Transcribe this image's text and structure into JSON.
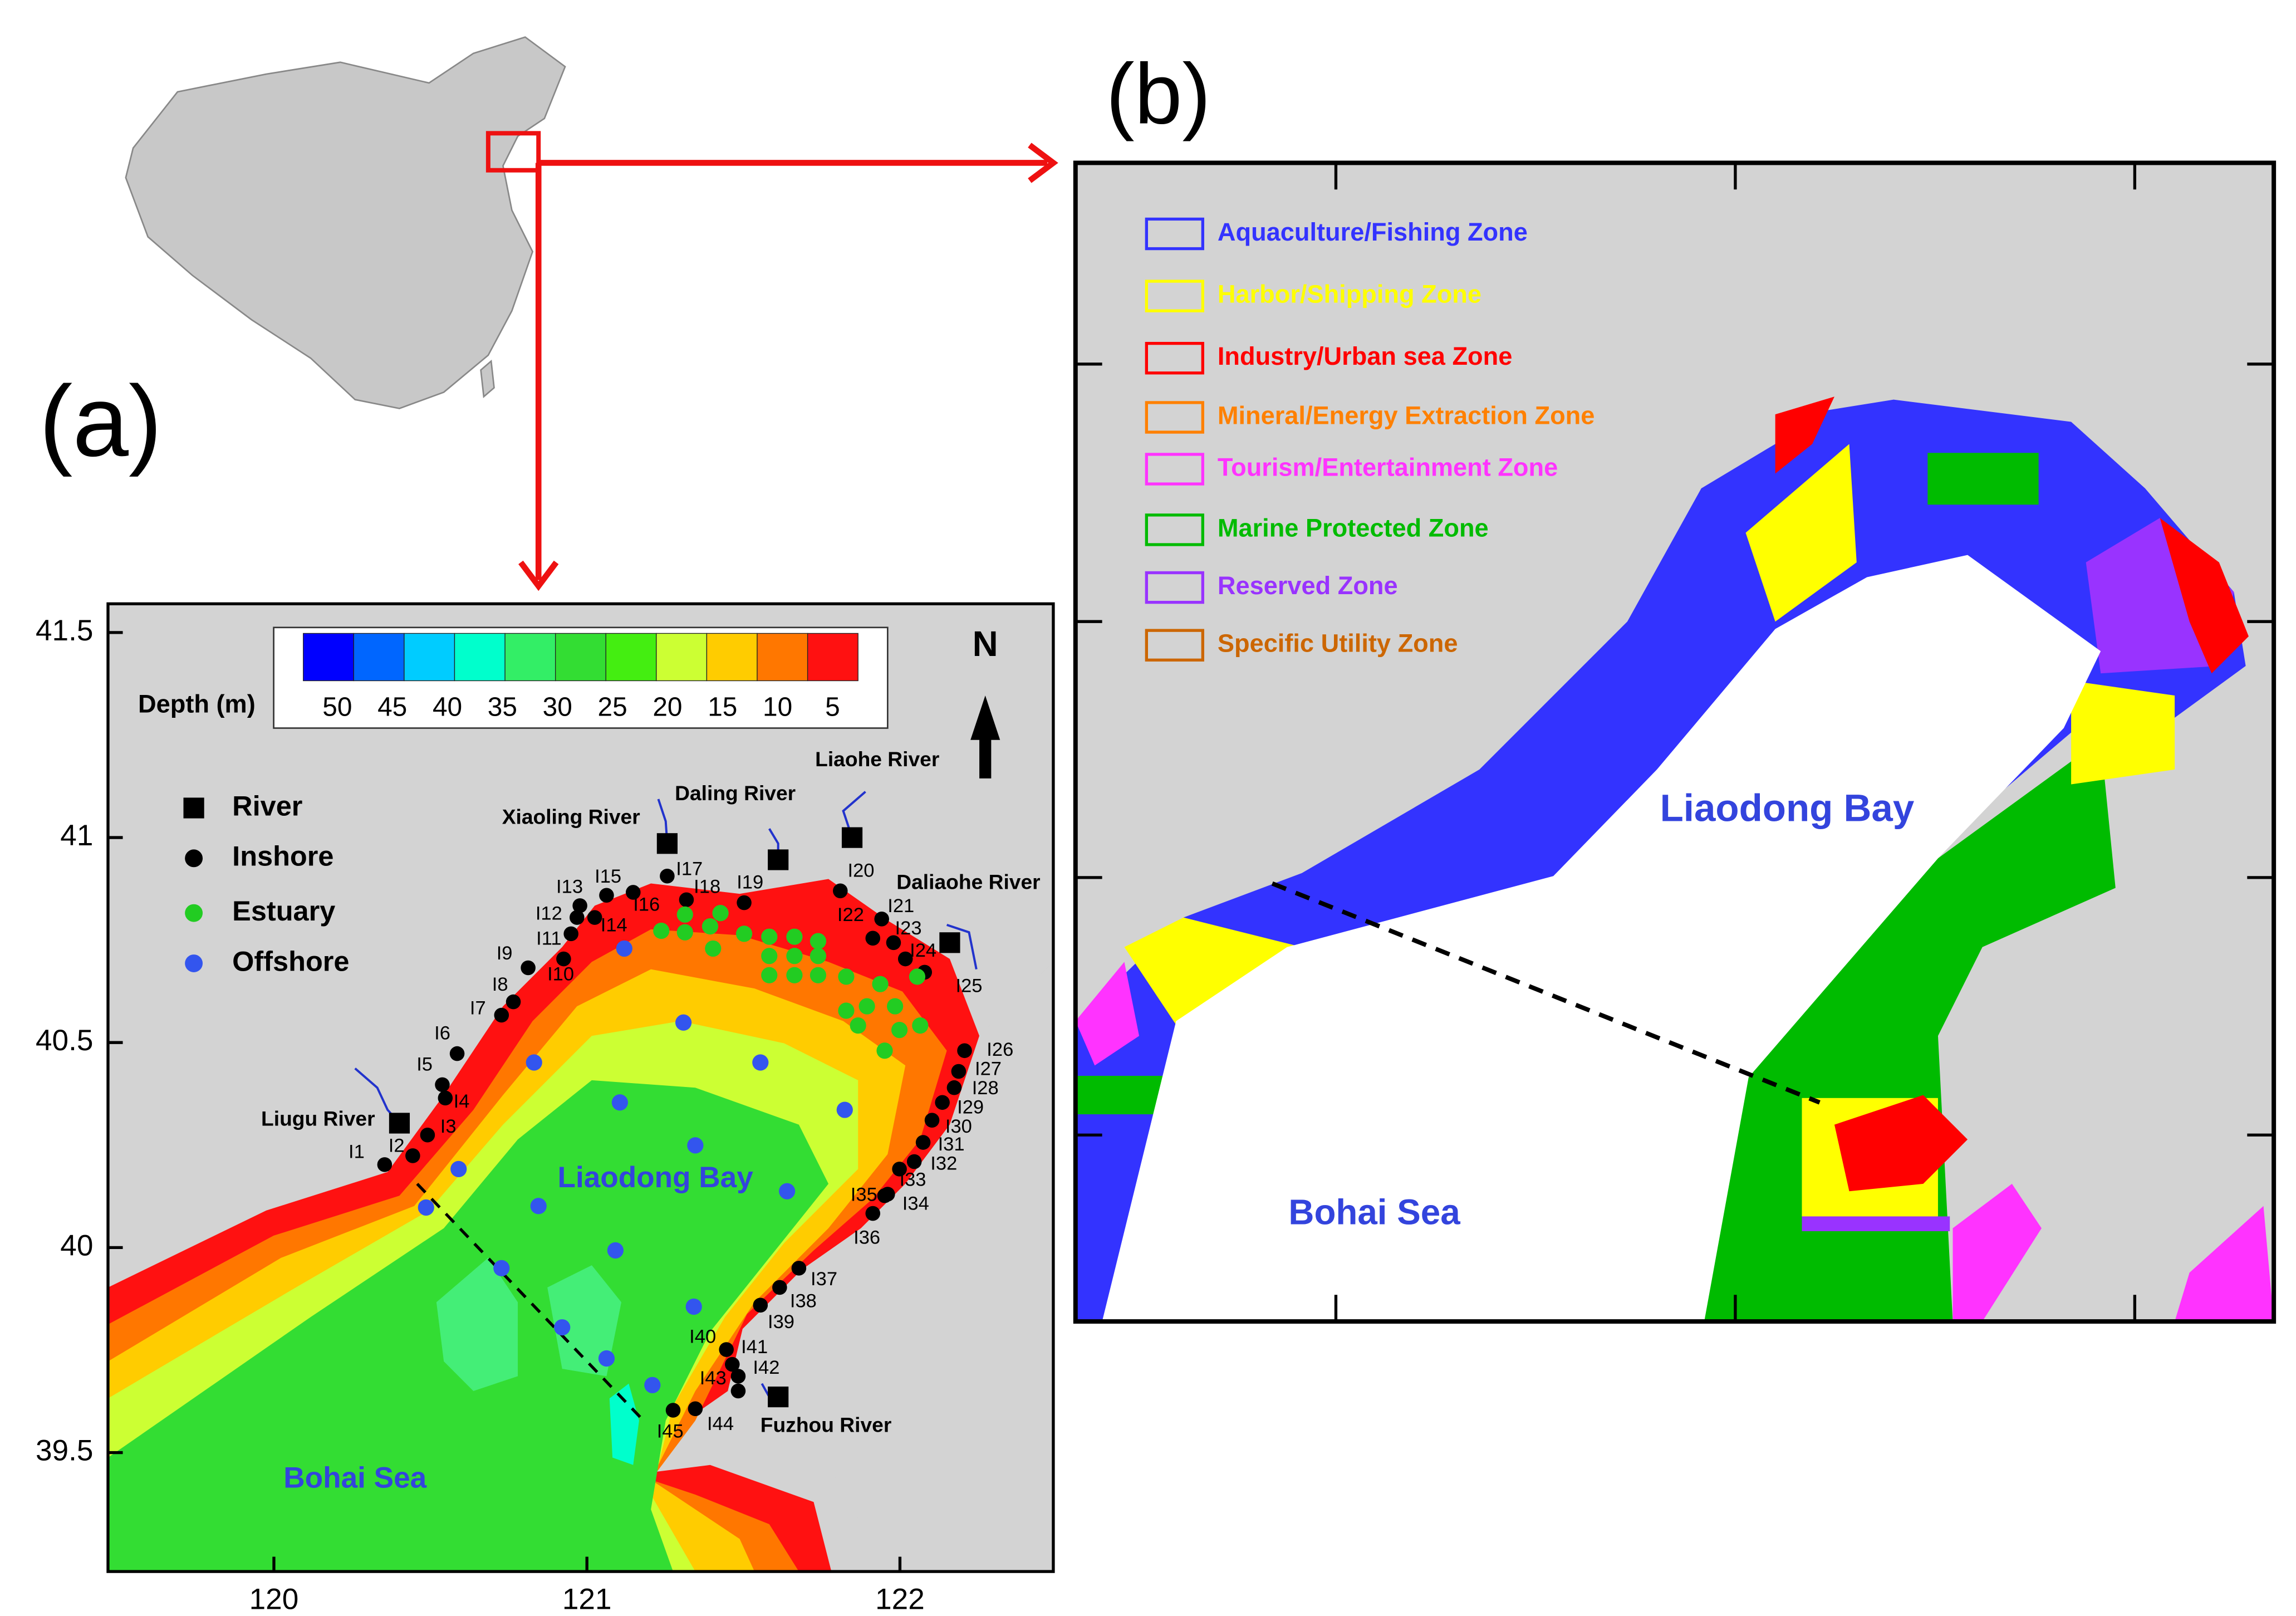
{
  "panel_a": {
    "label": "(a)",
    "xlim": [
      119.47,
      122.49
    ],
    "ylim": [
      39.21,
      41.57
    ],
    "xticks": [
      120,
      121,
      122
    ],
    "yticks": [
      39.5,
      40,
      40.5,
      41,
      41.5
    ],
    "colorbar": {
      "title": "Depth (m)",
      "ticks": [
        50,
        45,
        40,
        35,
        30,
        25,
        20,
        15,
        10,
        5
      ],
      "colors": [
        "#0000ff",
        "#0066ff",
        "#00ccff",
        "#00ffcc",
        "#33ee66",
        "#33dd33",
        "#44ee11",
        "#ccff33",
        "#ffcc00",
        "#ff7700",
        "#ff1111"
      ]
    },
    "north": "N",
    "legend": [
      {
        "name": "River",
        "color": "#000000"
      },
      {
        "name": "Inshore",
        "color": "#000000"
      },
      {
        "name": "Estuary",
        "color": "#22cc22"
      },
      {
        "name": "Offshore",
        "color": "#3355ee"
      }
    ],
    "rivers": [
      "Liugu River",
      "Xiaoling River",
      "Daling River",
      "Liaohe River",
      "Daliaohe River",
      "Fuzhou River"
    ],
    "stations": [
      "I1",
      "I2",
      "I3",
      "I4",
      "I5",
      "I6",
      "I7",
      "I8",
      "I9",
      "I10",
      "I11",
      "I12",
      "I13",
      "I14",
      "I15",
      "I16",
      "I17",
      "I18",
      "I19",
      "I20",
      "I21",
      "I22",
      "I23",
      "I24",
      "I25",
      "I26",
      "I27",
      "I28",
      "I29",
      "I30",
      "I31",
      "I32",
      "I33",
      "I34",
      "I35",
      "I36",
      "I37",
      "I38",
      "I39",
      "I40",
      "I41",
      "I42",
      "I43",
      "I44",
      "I45"
    ],
    "places": [
      "Liaodong Bay",
      "Bohai Sea"
    ]
  },
  "panel_b": {
    "label": "(b)",
    "legend": [
      {
        "name": "Aquaculture/Fishing Zone",
        "color": "#3333ff"
      },
      {
        "name": "Harbor/Shipping Zone",
        "color": "#ffff00"
      },
      {
        "name": "Industry/Urban sea Zone",
        "color": "#ff0000"
      },
      {
        "name": "Mineral/Energy Extraction Zone",
        "color": "#ff8000"
      },
      {
        "name": "Tourism/Entertainment Zone",
        "color": "#ff33ff"
      },
      {
        "name": "Marine Protected Zone",
        "color": "#00bb00"
      },
      {
        "name": "Reserved Zone",
        "color": "#9933ff"
      },
      {
        "name": "Specific Utility Zone",
        "color": "#cc6600"
      }
    ],
    "places": [
      "Liaodong Bay",
      "Bohai Sea"
    ]
  }
}
